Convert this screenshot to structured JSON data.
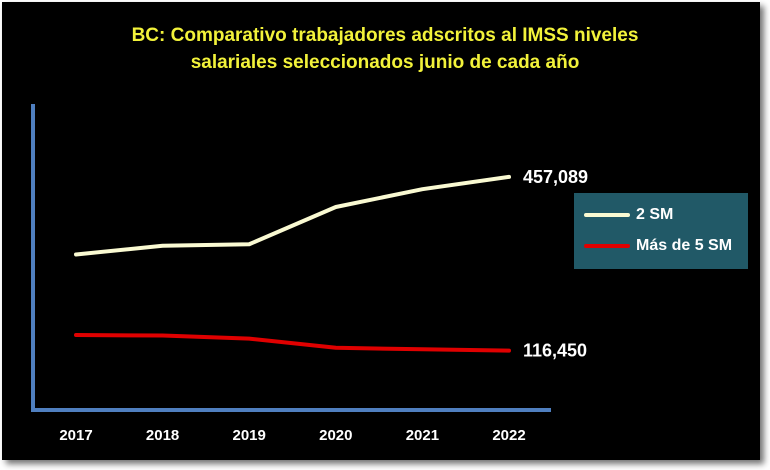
{
  "chart_data": {
    "type": "line",
    "title_lines": [
      "BC: Comparativo trabajadores adscritos al IMSS niveles",
      "salariales seleccionados junio de cada año"
    ],
    "categories": [
      "2017",
      "2018",
      "2019",
      "2020",
      "2021",
      "2022"
    ],
    "series": [
      {
        "name": "2 SM",
        "color": "#fafad2",
        "values": [
          305000,
          322000,
          325000,
          398000,
          433000,
          457089
        ],
        "end_label": "457,089"
      },
      {
        "name": "Más de 5 SM",
        "color": "#e00000",
        "values": [
          147000,
          146000,
          140000,
          122000,
          119000,
          116450
        ],
        "end_label": "116,450"
      }
    ],
    "ylim": [
      0,
      600000
    ],
    "grid": false,
    "legend_position": "right",
    "colors": {
      "background": "#000000",
      "title": "#f2f23a",
      "axis": "#4f7fbf",
      "legend_bg": "#215967",
      "text": "#ffffff"
    }
  }
}
